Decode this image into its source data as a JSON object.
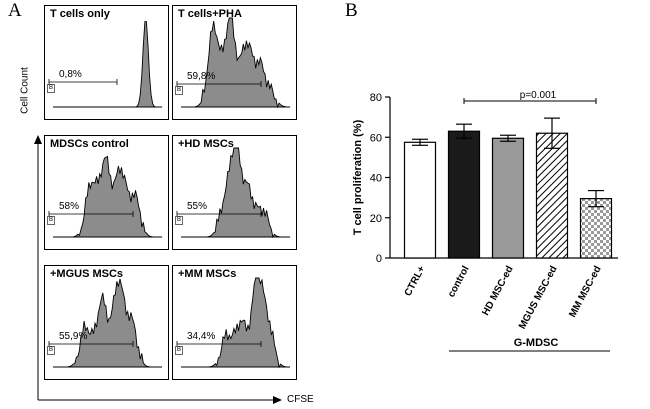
{
  "panel_a": {
    "letter": "A",
    "ylabel": "Cell Count",
    "xlabel": "CFSE",
    "histograms": [
      {
        "title": "T cells only",
        "percent": "0,8%",
        "profile": [
          [
            0.85,
            1.0
          ]
        ]
      },
      {
        "title": "T cells+PHA",
        "percent": "59,8%",
        "profile": [
          [
            0.3,
            0.9
          ],
          [
            0.45,
            1.0
          ],
          [
            0.6,
            0.7
          ],
          [
            0.72,
            0.45
          ],
          [
            0.82,
            0.15
          ]
        ]
      },
      {
        "title": "MDSCs control",
        "percent": "58%",
        "profile": [
          [
            0.35,
            0.6
          ],
          [
            0.48,
            0.85
          ],
          [
            0.62,
            0.75
          ],
          [
            0.75,
            0.45
          ]
        ]
      },
      {
        "title": "+HD MSCs",
        "percent": "55%",
        "profile": [
          [
            0.4,
            0.35
          ],
          [
            0.5,
            1.0
          ],
          [
            0.62,
            0.5
          ],
          [
            0.75,
            0.3
          ]
        ]
      },
      {
        "title": "+MGUS MSCs",
        "percent": "55,9%",
        "profile": [
          [
            0.3,
            0.45
          ],
          [
            0.45,
            0.75
          ],
          [
            0.6,
            0.95
          ],
          [
            0.72,
            0.5
          ]
        ]
      },
      {
        "title": "+MM MSCs",
        "percent": "34,4%",
        "profile": [
          [
            0.42,
            0.35
          ],
          [
            0.55,
            0.5
          ],
          [
            0.7,
            1.0
          ],
          [
            0.8,
            0.45
          ]
        ]
      }
    ]
  },
  "chart_data": {
    "letter": "B",
    "type": "bar",
    "ylabel": "T cell proliferation (%)",
    "ylim": [
      0,
      80
    ],
    "yticks": [
      0,
      20,
      40,
      60,
      80
    ],
    "categories": [
      "CTRL+",
      "control",
      "HD MSC-ed",
      "MGUS MSC-ed",
      "MM MSC-ed"
    ],
    "values": [
      57.5,
      63,
      59.5,
      62,
      29.5
    ],
    "errors": [
      1.5,
      3.5,
      1.5,
      7.5,
      4.0
    ],
    "fills": [
      "white",
      "black",
      "gray",
      "diagonal",
      "checker"
    ],
    "significance": {
      "from": 1,
      "to": 4,
      "label": "p=0.001"
    },
    "group_label": "G-MDSC",
    "group_from": 1,
    "group_to": 4
  }
}
